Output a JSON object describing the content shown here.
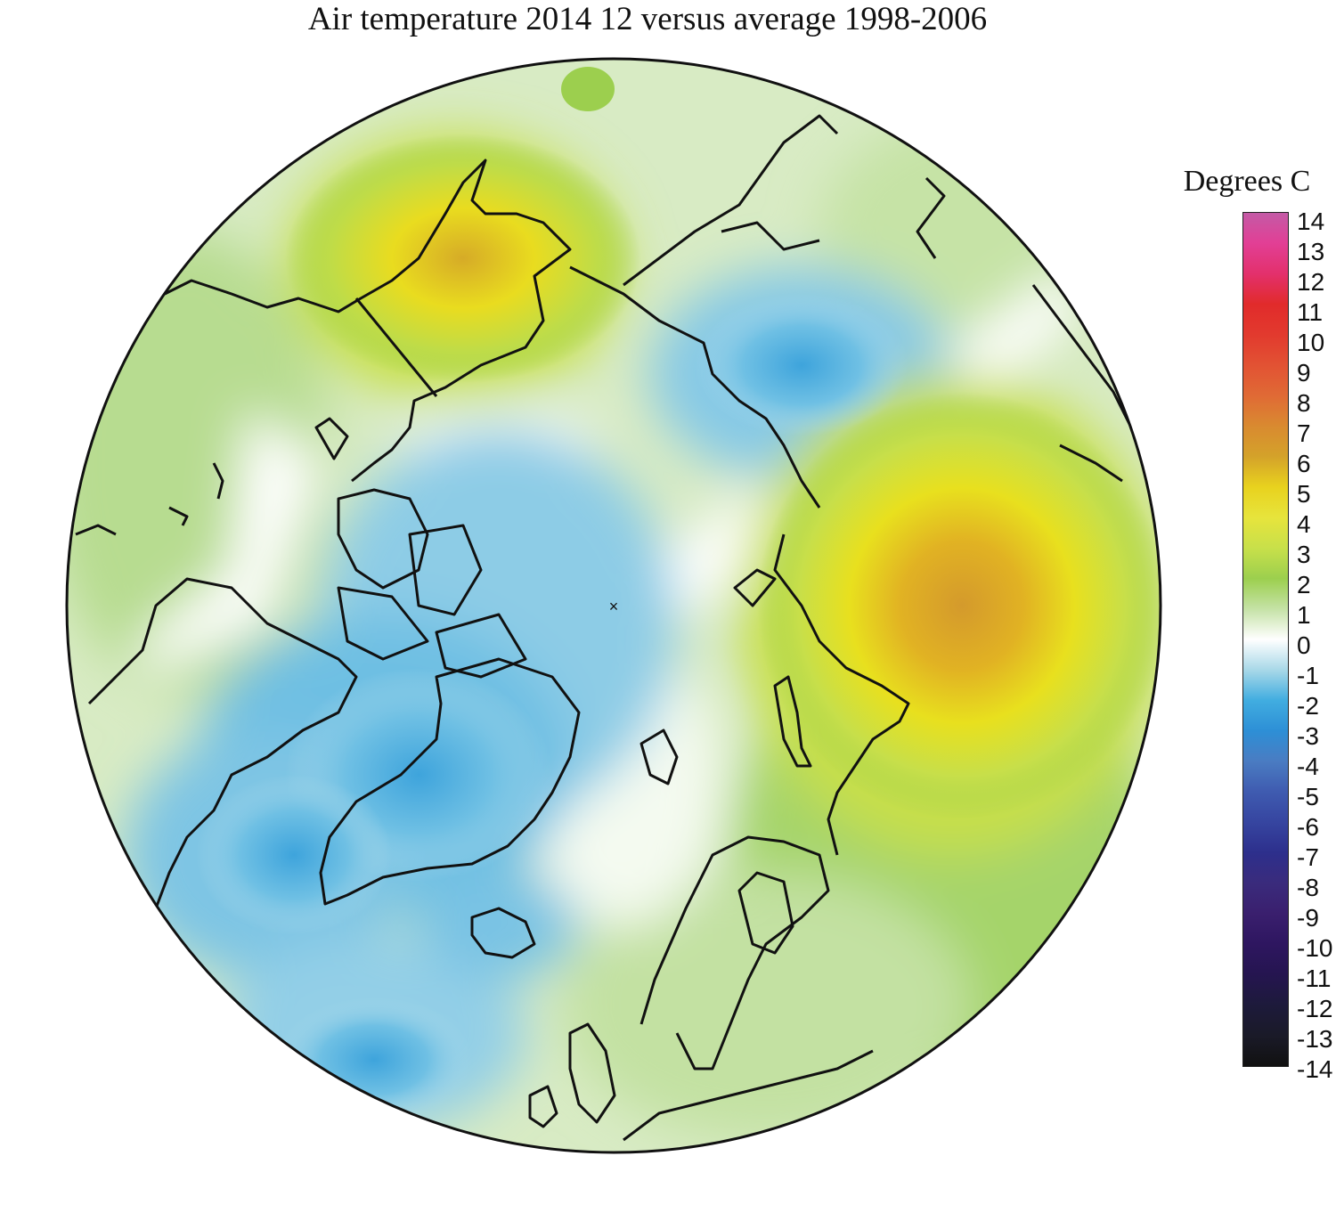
{
  "title": "Air temperature 2014 12 versus average 1998-2006",
  "legend": {
    "title": "Degrees C",
    "ticks": [
      "14",
      "13",
      "12",
      "11",
      "10",
      "9",
      "8",
      "7",
      "6",
      "5",
      "4",
      "3",
      "2",
      "1",
      "0",
      "-1",
      "-2",
      "-3",
      "-4",
      "-5",
      "-6",
      "-7",
      "-8",
      "-9",
      "-10",
      "-11",
      "-12",
      "-13",
      "-14"
    ],
    "colors": [
      "#c45aa6",
      "#e23f95",
      "#e3306c",
      "#e12b2b",
      "#e23a2e",
      "#e25233",
      "#e06a35",
      "#d98a30",
      "#d4a22a",
      "#e8d21e",
      "#e7e43c",
      "#c8e04a",
      "#9ccf4e",
      "#c5e2a6",
      "#ffffff",
      "#a8d8e8",
      "#41ade0",
      "#2d8fd6",
      "#4a7cc2",
      "#3f5bb0",
      "#3645a0",
      "#2d2f8c",
      "#3a2b7c",
      "#3a1f6e",
      "#2e1660",
      "#251550",
      "#1d1a3b",
      "#1a1a28",
      "#111111"
    ]
  },
  "markers": {
    "pole": "×"
  }
}
